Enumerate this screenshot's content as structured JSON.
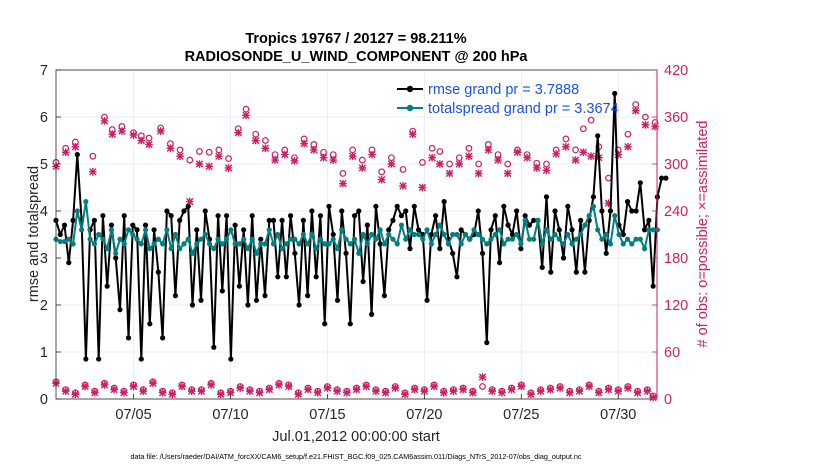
{
  "chart_data": {
    "type": "line",
    "title": [
      "Tropics 19767 / 20127 = 98.211%",
      "RADIOSONDE_U_WIND_COMPONENT @ 200 hPa"
    ],
    "xlabel": "Jul.01,2012 00:00:00 start",
    "ylabel_left": "rmse and totalspread",
    "ylabel_right": "# of obs: o=possible; ×=assimilated",
    "xlim": [
      1,
      32
    ],
    "ylim_left": [
      0,
      7
    ],
    "ylim_right": [
      0,
      420
    ],
    "x_ticks": [
      5,
      10,
      15,
      20,
      25,
      30
    ],
    "x_tick_labels": [
      "07/05",
      "07/10",
      "07/15",
      "07/20",
      "07/25",
      "07/30"
    ],
    "y_ticks_left": [
      "0",
      "1",
      "2",
      "3",
      "4",
      "5",
      "6",
      "7"
    ],
    "y_ticks_right": [
      "0",
      "60",
      "120",
      "180",
      "240",
      "300",
      "360",
      "420"
    ],
    "grid": true,
    "legend_position": "top-right",
    "colors": {
      "rmse": "#000000",
      "spread": "#008080",
      "obs": "#cc1f66",
      "right_axis": "#cc1f66",
      "legend_text": "#1a52e6",
      "grid": "#e6e6e6"
    },
    "series": [
      {
        "name": "rmse",
        "legend": "rmse grand pr = 3.7888",
        "axis": "left",
        "values": [
          3.8,
          3.5,
          3.7,
          2.9,
          3.8,
          5.2,
          3.8,
          0.85,
          3.6,
          3.8,
          0.85,
          3.9,
          2.4,
          3.7,
          3.0,
          1.9,
          3.9,
          1.3,
          3.7,
          3.6,
          0.85,
          3.7,
          1.6,
          3.6,
          2.7,
          1.3,
          4.0,
          3.9,
          2.2,
          3.8,
          4.0,
          4.1,
          2.0,
          3.6,
          2.1,
          4.0,
          3.4,
          1.1,
          3.9,
          2.3,
          3.9,
          0.85,
          3.7,
          2.4,
          3.6,
          2.0,
          3.9,
          2.1,
          3.4,
          2.2,
          3.8,
          3.8,
          2.6,
          3.8,
          2.6,
          3.9,
          3.1,
          2.0,
          3.8,
          2.2,
          4.0,
          2.6,
          3.9,
          1.6,
          4.1,
          3.5,
          2.1,
          4.0,
          3.1,
          1.6,
          3.9,
          4.0,
          2.5,
          3.7,
          1.8,
          4.1,
          3.3,
          2.2,
          3.6,
          3.8,
          4.1,
          3.9,
          4.0,
          3.2,
          4.1,
          3.6,
          3.5,
          2.1,
          3.5,
          3.9,
          3.2,
          4.2,
          3.4,
          3.1,
          2.6,
          3.6,
          3.5,
          3.4,
          3.5,
          4.0,
          3.1,
          1.2,
          3.6,
          3.9,
          2.9,
          4.1,
          3.7,
          3.5,
          4.0,
          3.2,
          3.9,
          3.7,
          3.8,
          3.8,
          2.8,
          4.3,
          2.7,
          4.0,
          3.6,
          3.0,
          4.1,
          3.6,
          2.7,
          3.8,
          2.7,
          3.8,
          4.3,
          5.6,
          4.0,
          3.1,
          4.0,
          6.5,
          3.7,
          3.5,
          4.2,
          4.0,
          4.0,
          4.6,
          3.6,
          3.8,
          2.4,
          4.3,
          4.7,
          4.7
        ],
        "x_start": 1.0,
        "x_step": 0.22
      },
      {
        "name": "totalspread",
        "legend": "totalspread grand pr = 3.3674",
        "axis": "left",
        "values": [
          3.4,
          3.35,
          3.35,
          3.4,
          3.3,
          4.0,
          3.6,
          4.2,
          3.4,
          3.3,
          3.5,
          3.4,
          3.2,
          3.6,
          3.1,
          3.4,
          3.3,
          3.6,
          3.5,
          3.4,
          3.3,
          3.6,
          3.2,
          3.3,
          3.4,
          3.3,
          3.6,
          3.2,
          3.5,
          3.2,
          3.3,
          3.4,
          3.1,
          3.3,
          3.4,
          3.5,
          3.3,
          3.2,
          3.4,
          3.3,
          3.4,
          3.6,
          3.3,
          3.3,
          3.4,
          3.2,
          3.4,
          3.1,
          3.3,
          3.3,
          3.6,
          3.3,
          3.5,
          3.2,
          3.3,
          3.4,
          3.4,
          3.3,
          3.5,
          3.3,
          3.5,
          3.2,
          3.4,
          3.3,
          3.3,
          3.4,
          3.2,
          3.6,
          3.4,
          3.3,
          3.4,
          3.1,
          3.5,
          3.3,
          3.5,
          3.4,
          3.6,
          3.3,
          3.5,
          3.4,
          3.3,
          3.7,
          3.4,
          3.6,
          3.5,
          3.5,
          3.4,
          3.6,
          3.3,
          3.5,
          3.7,
          3.5,
          3.3,
          3.5,
          3.5,
          3.3,
          3.5,
          3.4,
          3.6,
          3.5,
          3.4,
          3.3,
          3.4,
          3.5,
          3.6,
          3.3,
          3.4,
          3.4,
          3.5,
          3.3,
          3.8,
          3.4,
          3.4,
          3.8,
          3.3,
          3.6,
          3.4,
          3.5,
          3.4,
          3.3,
          3.5,
          3.3,
          3.4,
          3.5,
          3.7,
          3.9,
          4.1,
          3.6,
          3.4,
          3.5,
          3.3,
          3.9,
          3.5,
          3.3,
          3.4,
          3.3,
          3.4,
          3.4,
          3.2,
          3.6,
          3.6,
          3.6
        ],
        "x_start": 1.0,
        "x_step": 0.22
      },
      {
        "name": "obs_possible",
        "axis": "right",
        "marker": "o",
        "x": [
          1.0,
          1.5,
          2.0,
          2.9,
          3.5,
          3.9,
          4.4,
          5.0,
          5.4,
          5.8,
          6.4,
          6.9,
          7.4,
          7.9,
          8.4,
          8.9,
          9.4,
          9.9,
          10.4,
          10.8,
          11.3,
          11.8,
          12.3,
          12.8,
          13.3,
          13.8,
          14.3,
          14.8,
          15.3,
          15.8,
          16.3,
          16.8,
          17.3,
          17.8,
          18.3,
          18.9,
          19.4,
          19.9,
          20.4,
          20.8,
          21.3,
          21.8,
          22.3,
          22.8,
          23.3,
          23.8,
          24.3,
          24.8,
          25.3,
          25.8,
          26.3,
          26.8,
          27.3,
          27.8,
          28.2,
          28.6,
          29.0,
          29.5,
          30.0,
          30.5,
          30.9,
          31.4,
          31.9
        ],
        "values": [
          302,
          320,
          328,
          310,
          360,
          344,
          348,
          340,
          336,
          333,
          346,
          326,
          318,
          305,
          316,
          315,
          318,
          307,
          345,
          370,
          338,
          330,
          312,
          318,
          308,
          332,
          325,
          315,
          312,
          288,
          318,
          305,
          318,
          290,
          308,
          293,
          342,
          302,
          320,
          316,
          300,
          308,
          320,
          300,
          325,
          312,
          300,
          318,
          312,
          301,
          300,
          318,
          332,
          318,
          345,
          356,
          322,
          282,
          318,
          338,
          376,
          360,
          353
        ]
      },
      {
        "name": "obs_assimilated",
        "axis": "right",
        "marker": "x",
        "x": [
          1.0,
          1.5,
          2.0,
          2.9,
          3.5,
          3.9,
          4.4,
          5.0,
          5.4,
          5.8,
          6.4,
          6.9,
          7.4,
          7.9,
          8.4,
          8.9,
          9.4,
          9.9,
          10.4,
          10.8,
          11.3,
          11.8,
          12.3,
          12.8,
          13.3,
          13.8,
          14.3,
          14.8,
          15.3,
          15.8,
          16.3,
          16.8,
          17.3,
          17.8,
          18.3,
          18.9,
          19.4,
          19.9,
          20.4,
          20.8,
          21.3,
          21.8,
          22.3,
          22.8,
          23.3,
          23.8,
          24.3,
          24.8,
          25.3,
          25.8,
          26.3,
          26.8,
          27.3,
          27.8,
          28.2,
          28.6,
          29.0,
          29.5,
          30.0,
          30.5,
          30.9,
          31.4,
          31.9
        ],
        "values": [
          297,
          315,
          322,
          290,
          355,
          338,
          342,
          337,
          330,
          325,
          342,
          320,
          310,
          252,
          300,
          297,
          310,
          295,
          340,
          362,
          330,
          320,
          305,
          312,
          304,
          326,
          318,
          308,
          305,
          275,
          310,
          295,
          312,
          280,
          300,
          272,
          338,
          270,
          308,
          300,
          288,
          300,
          310,
          288,
          318,
          305,
          288,
          315,
          308,
          295,
          292,
          313,
          322,
          305,
          315,
          310,
          308,
          250,
          312,
          322,
          368,
          350,
          348
        ]
      },
      {
        "name": "obs_low_possible",
        "axis": "right",
        "marker": "o",
        "x": [
          1.0,
          1.5,
          2.0,
          2.5,
          3.0,
          3.5,
          4.0,
          4.5,
          5.0,
          5.5,
          6.0,
          6.5,
          7.0,
          7.5,
          8.0,
          8.5,
          9.0,
          9.5,
          10.0,
          10.5,
          11.0,
          11.5,
          12.0,
          12.5,
          13.0,
          13.5,
          14.0,
          14.5,
          15.0,
          15.5,
          16.0,
          16.5,
          17.0,
          17.5,
          18.0,
          18.5,
          19.0,
          19.5,
          20.0,
          20.5,
          21.0,
          21.5,
          22.0,
          22.5,
          23.0,
          23.5,
          24.0,
          24.5,
          25.0,
          25.5,
          26.0,
          26.5,
          27.0,
          27.5,
          28.0,
          28.5,
          29.0,
          29.5,
          30.0,
          30.5,
          31.0,
          31.5,
          31.8
        ],
        "values": [
          22,
          12,
          8,
          18,
          10,
          20,
          14,
          10,
          18,
          12,
          22,
          10,
          8,
          18,
          12,
          12,
          20,
          8,
          10,
          16,
          12,
          10,
          14,
          20,
          18,
          8,
          14,
          10,
          16,
          12,
          10,
          14,
          18,
          12,
          10,
          16,
          8,
          14,
          12,
          18,
          10,
          12,
          14,
          10,
          16,
          12,
          10,
          14,
          18,
          8,
          12,
          14,
          16,
          10,
          12,
          18,
          10,
          14,
          12,
          16,
          10,
          12,
          4
        ]
      },
      {
        "name": "obs_low_assimilated",
        "axis": "right",
        "marker": "x",
        "x": [
          1.0,
          1.5,
          2.0,
          2.5,
          3.0,
          3.5,
          4.0,
          4.5,
          5.0,
          5.5,
          6.0,
          6.5,
          7.0,
          7.5,
          8.0,
          8.5,
          9.0,
          9.5,
          10.0,
          10.5,
          11.0,
          11.5,
          12.0,
          12.5,
          13.0,
          13.5,
          14.0,
          14.5,
          15.0,
          15.5,
          16.0,
          16.5,
          17.0,
          17.5,
          18.0,
          18.5,
          19.0,
          19.5,
          20.0,
          20.5,
          21.0,
          21.5,
          22.0,
          22.5,
          23.0,
          23.5,
          24.0,
          24.5,
          25.0,
          25.5,
          26.0,
          26.5,
          27.0,
          27.5,
          28.0,
          28.5,
          29.0,
          29.5,
          30.0,
          30.5,
          31.0,
          31.5,
          31.8
        ],
        "values": [
          20,
          10,
          6,
          16,
          8,
          18,
          12,
          8,
          16,
          10,
          20,
          8,
          6,
          16,
          10,
          10,
          18,
          6,
          8,
          14,
          10,
          8,
          12,
          18,
          16,
          6,
          12,
          8,
          14,
          10,
          8,
          12,
          16,
          10,
          8,
          14,
          6,
          12,
          10,
          16,
          8,
          10,
          12,
          8,
          28,
          10,
          8,
          12,
          16,
          6,
          10,
          12,
          14,
          8,
          10,
          16,
          8,
          12,
          10,
          14,
          8,
          10,
          2
        ]
      }
    ]
  },
  "footnote": "data file: /Users/raeder/DAI/ATM_forcXX/CAM6_setup/f.e21.FHIST_BGC.f09_025.CAM6assim.011/Diags_NTrS_2012-07/obs_diag_output.nc"
}
